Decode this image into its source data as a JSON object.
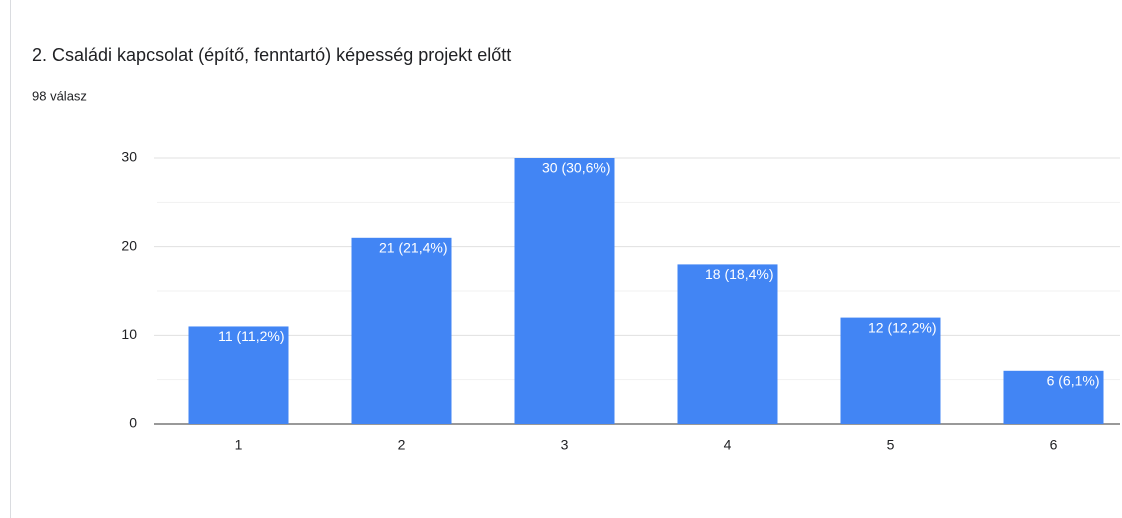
{
  "chart_data": {
    "type": "bar",
    "title": "2. Családi kapcsolat (építő, fenntartó) képesség projekt előtt",
    "subtitle": "98 válasz",
    "categories": [
      "1",
      "2",
      "3",
      "4",
      "5",
      "6"
    ],
    "values": [
      11,
      21,
      30,
      18,
      12,
      6
    ],
    "value_labels": [
      "11 (11,2%)",
      "21 (21,4%)",
      "30 (30,6%)",
      "18 (18,4%)",
      "12 (12,2%)",
      "6 (6,1%)"
    ],
    "color": "#4285f4",
    "ylim": [
      0,
      30
    ],
    "yticks": [
      0,
      10,
      20,
      30
    ],
    "minor_yticks": [
      5,
      15,
      25
    ],
    "grid": true
  }
}
